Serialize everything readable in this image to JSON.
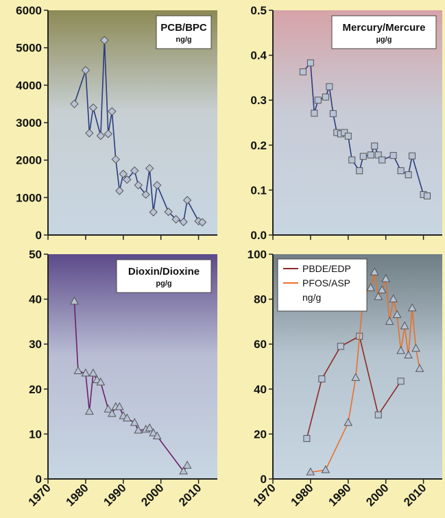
{
  "chart_data": [
    {
      "type": "line",
      "title": "PCB/BPC",
      "unit": "ng/g",
      "ylim": [
        0,
        6000
      ],
      "yticks": [
        0,
        1000,
        2000,
        3000,
        4000,
        5000,
        6000
      ],
      "xlim": [
        1970,
        2015
      ],
      "xticks": [
        1970,
        1980,
        1990,
        2000,
        2010
      ],
      "background": {
        "top": "#8c8a55",
        "mid": "#c7cfd2",
        "bottom": "#c8d6e2"
      },
      "series": [
        {
          "color": "#2a3c7e",
          "marker": "diamond",
          "marker_fill": "#b8c3d6",
          "x": [
            1977,
            1980,
            1981,
            1982,
            1984,
            1985,
            1986,
            1987,
            1988,
            1989,
            1990,
            1991,
            1993,
            1994,
            1996,
            1997,
            1998,
            1999,
            2002,
            2004,
            2006,
            2007,
            2010,
            2011
          ],
          "y": [
            3500,
            4400,
            2720,
            3400,
            2650,
            5200,
            2700,
            3300,
            2020,
            1180,
            1630,
            1480,
            1720,
            1330,
            1080,
            1780,
            610,
            1330,
            620,
            420,
            350,
            930,
            370,
            340
          ]
        }
      ]
    },
    {
      "type": "line",
      "title": "Mercury/Mercure",
      "unit": "µg/g",
      "ylim": [
        0,
        0.5
      ],
      "yticks": [
        "0.0",
        "0.1",
        "0.2",
        "0.3",
        "0.4",
        "0.5"
      ],
      "xlim": [
        1970,
        2015
      ],
      "xticks": [
        1970,
        1980,
        1990,
        2000,
        2010
      ],
      "background": {
        "top": "#d6a3a8",
        "mid": "#c8cbd5",
        "bottom": "#c8d6e2"
      },
      "series": [
        {
          "color": "#2a3c7e",
          "marker": "square",
          "marker_fill": "#b8c3d6",
          "x": [
            1978,
            1980,
            1981,
            1982,
            1984,
            1985,
            1986,
            1987,
            1988,
            1989,
            1990,
            1991,
            1993,
            1994,
            1996,
            1997,
            1998,
            1999,
            2002,
            2004,
            2006,
            2007,
            2010,
            2011
          ],
          "y": [
            0.363,
            0.383,
            0.271,
            0.3,
            0.307,
            0.33,
            0.27,
            0.228,
            0.225,
            0.228,
            0.22,
            0.167,
            0.143,
            0.175,
            0.178,
            0.198,
            0.178,
            0.167,
            0.177,
            0.143,
            0.134,
            0.176,
            0.09,
            0.087
          ]
        }
      ]
    },
    {
      "type": "line",
      "title": "Dioxin/Dioxine",
      "unit": "pg/g",
      "ylim": [
        0,
        50
      ],
      "yticks": [
        0,
        10,
        20,
        30,
        40,
        50
      ],
      "xlim": [
        1970,
        2015
      ],
      "xticks": [
        1970,
        1980,
        1990,
        2000,
        2010
      ],
      "background": {
        "top": "#5c4a8a",
        "mid": "#b9bdd4",
        "bottom": "#c8d6e2"
      },
      "series": [
        {
          "color": "#6b1f6b",
          "marker": "triangle",
          "marker_fill": "#b8c3d6",
          "x": [
            1977,
            1978,
            1980,
            1981,
            1982,
            1983,
            1984,
            1986,
            1987,
            1988,
            1989,
            1990,
            1991,
            1993,
            1994,
            1996,
            1997,
            1998,
            1999,
            2006,
            2007
          ],
          "y": [
            39.5,
            24,
            23.5,
            15,
            23.5,
            22,
            21.5,
            15.5,
            14.5,
            16,
            16,
            14,
            13.5,
            12.5,
            10.8,
            11,
            11.3,
            10.2,
            9.5,
            1.7,
            3.0
          ]
        }
      ]
    },
    {
      "type": "line",
      "ylim": [
        0,
        100
      ],
      "yticks": [
        0,
        20,
        40,
        60,
        80,
        100
      ],
      "xlim": [
        1970,
        2015
      ],
      "xticks": [
        1970,
        1980,
        1990,
        2000,
        2010
      ],
      "unit": "ng/g",
      "background": {
        "top": "#6f7d84",
        "mid": "#b6c4cf",
        "bottom": "#c8d6e2"
      },
      "series": [
        {
          "name": "PBDE/EDP",
          "color": "#8b2a24",
          "marker": "square",
          "marker_fill": "#b8c3d6",
          "x": [
            1979,
            1983,
            1988,
            1993,
            1998,
            2004
          ],
          "y": [
            18,
            44.5,
            59,
            63.5,
            28.5,
            43.5
          ]
        },
        {
          "name": "PFOS/ASP",
          "color": "#e8702a",
          "marker": "triangle",
          "marker_fill": "#b8c3d6",
          "x": [
            1980,
            1984,
            1990,
            1992,
            1994,
            1996,
            1997,
            1998,
            1999,
            2000,
            2001,
            2002,
            2003,
            2004,
            2005,
            2006,
            2007,
            2008,
            2009
          ],
          "y": [
            3,
            4,
            25,
            45,
            81,
            85,
            92,
            81,
            84,
            89,
            70,
            80,
            73,
            57,
            68,
            55,
            76,
            58,
            49
          ]
        }
      ]
    }
  ]
}
